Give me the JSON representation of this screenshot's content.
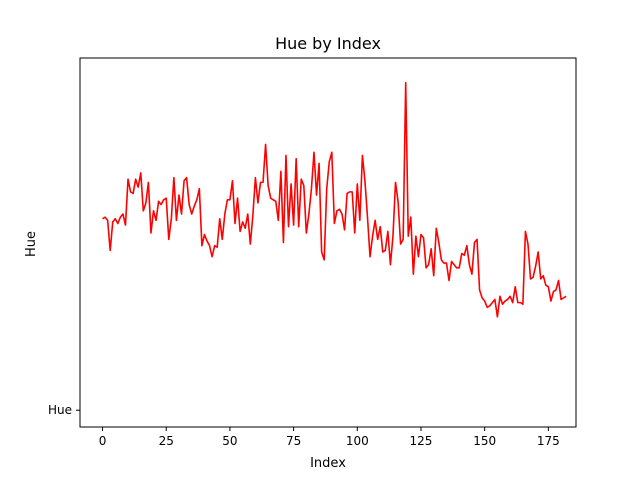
{
  "chart_data": {
    "type": "line",
    "title": "Hue by Index",
    "xlabel": "Index",
    "ylabel": "Hue",
    "xlim": [
      -8.85,
      185.85
    ],
    "ylim": [
      -0.53,
      11.13
    ],
    "xticks": [
      0,
      25,
      50,
      75,
      100,
      125,
      150,
      175
    ],
    "yticks": [
      {
        "value": 0,
        "label": "Hue"
      }
    ],
    "grid": false,
    "series": [
      {
        "color": "#ff0000",
        "values": [
          6.05,
          6.1,
          6.0,
          5.05,
          5.95,
          6.05,
          5.9,
          6.1,
          6.2,
          5.85,
          7.3,
          6.9,
          6.85,
          7.3,
          7.05,
          7.5,
          6.3,
          6.55,
          7.2,
          5.6,
          6.3,
          6.0,
          6.6,
          6.5,
          6.65,
          6.7,
          5.4,
          6.05,
          7.35,
          6.0,
          6.8,
          6.2,
          7.25,
          7.35,
          6.5,
          6.2,
          6.45,
          6.65,
          7.0,
          5.2,
          5.55,
          5.35,
          5.2,
          4.85,
          5.2,
          5.15,
          6.05,
          5.4,
          6.2,
          6.65,
          6.65,
          7.25,
          5.9,
          6.7,
          5.65,
          5.95,
          5.75,
          6.2,
          5.25,
          6.15,
          7.35,
          6.55,
          7.2,
          7.2,
          8.4,
          7.1,
          6.7,
          6.65,
          6.6,
          6.0,
          7.55,
          5.3,
          8.05,
          5.8,
          7.15,
          5.85,
          7.95,
          5.8,
          7.3,
          7.1,
          5.6,
          6.2,
          7.0,
          8.15,
          6.8,
          7.8,
          5.0,
          4.75,
          7.0,
          7.85,
          8.15,
          5.9,
          6.3,
          6.35,
          6.2,
          5.7,
          6.85,
          6.9,
          6.9,
          5.6,
          7.15,
          6.0,
          8.05,
          7.25,
          6.1,
          4.85,
          5.5,
          6.0,
          5.4,
          5.8,
          5.0,
          5.05,
          5.65,
          4.6,
          5.5,
          7.2,
          6.6,
          5.25,
          5.4,
          10.35,
          5.5,
          6.1,
          4.3,
          5.5,
          4.85,
          5.55,
          5.45,
          4.5,
          4.6,
          5.1,
          4.25,
          5.75,
          5.3,
          4.75,
          4.65,
          4.65,
          4.1,
          4.7,
          4.6,
          4.5,
          4.5,
          4.95,
          4.9,
          5.2,
          4.6,
          4.3,
          5.3,
          5.4,
          3.8,
          3.55,
          3.45,
          3.25,
          3.3,
          3.4,
          3.5,
          2.95,
          3.6,
          3.35,
          3.45,
          3.5,
          3.6,
          3.4,
          3.9,
          3.4,
          3.4,
          3.35,
          5.65,
          5.25,
          4.15,
          4.2,
          4.55,
          5.0,
          4.15,
          4.25,
          3.95,
          3.9,
          3.45,
          3.75,
          3.8,
          4.1,
          3.5,
          3.55,
          3.6
        ]
      }
    ]
  }
}
